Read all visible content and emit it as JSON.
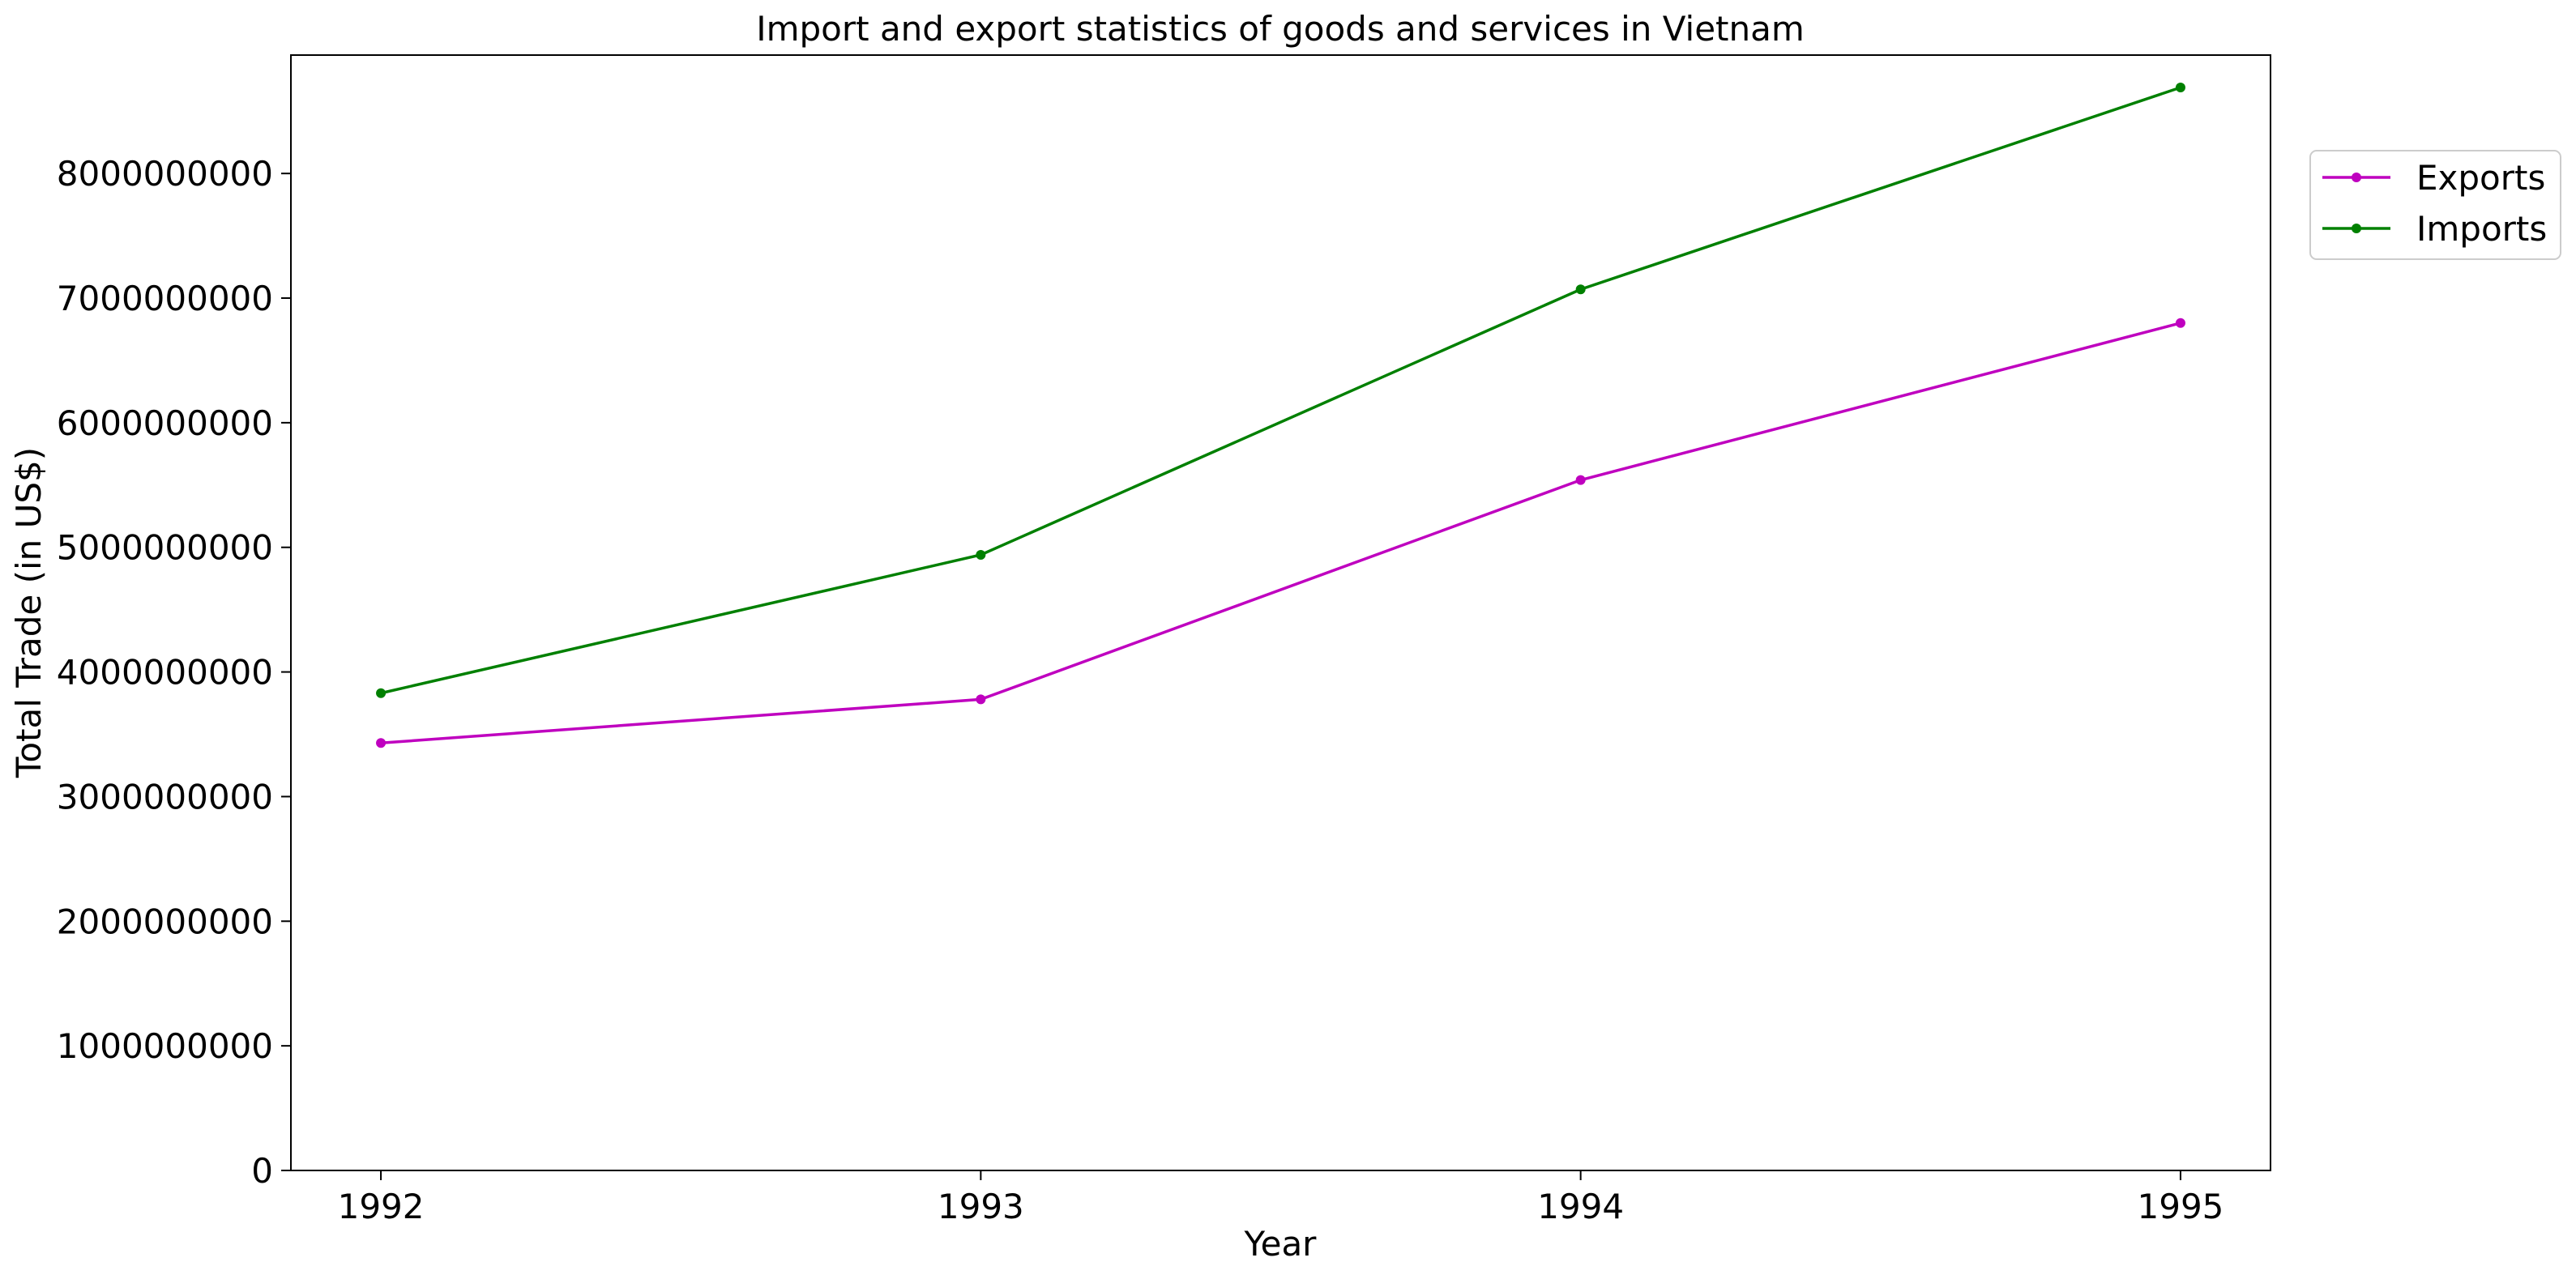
{
  "chart_data": {
    "type": "line",
    "title": "Import and export statistics of goods and services in Vietnam",
    "xlabel": "Year",
    "ylabel": "Total Trade (in US$)",
    "x": [
      1992,
      1993,
      1994,
      1995
    ],
    "x_tick_labels": [
      "1992",
      "1993",
      "1994",
      "1995"
    ],
    "y_ticks": [
      0,
      1000000000,
      2000000000,
      3000000000,
      4000000000,
      5000000000,
      6000000000,
      7000000000,
      8000000000
    ],
    "y_tick_labels": [
      "0",
      "1000000000",
      "2000000000",
      "3000000000",
      "4000000000",
      "5000000000",
      "6000000000",
      "7000000000",
      "8000000000"
    ],
    "xlim": [
      1991.85,
      1995.15
    ],
    "ylim": [
      0,
      8950000000
    ],
    "grid": false,
    "legend_position": "top-right (outside plot)",
    "series": [
      {
        "name": "Exports",
        "color": "#bf00bf",
        "values": [
          3430000000,
          3780000000,
          5540000000,
          6800000000
        ]
      },
      {
        "name": "Imports",
        "color": "#008000",
        "values": [
          3830000000,
          4940000000,
          7070000000,
          8690000000
        ]
      }
    ]
  }
}
